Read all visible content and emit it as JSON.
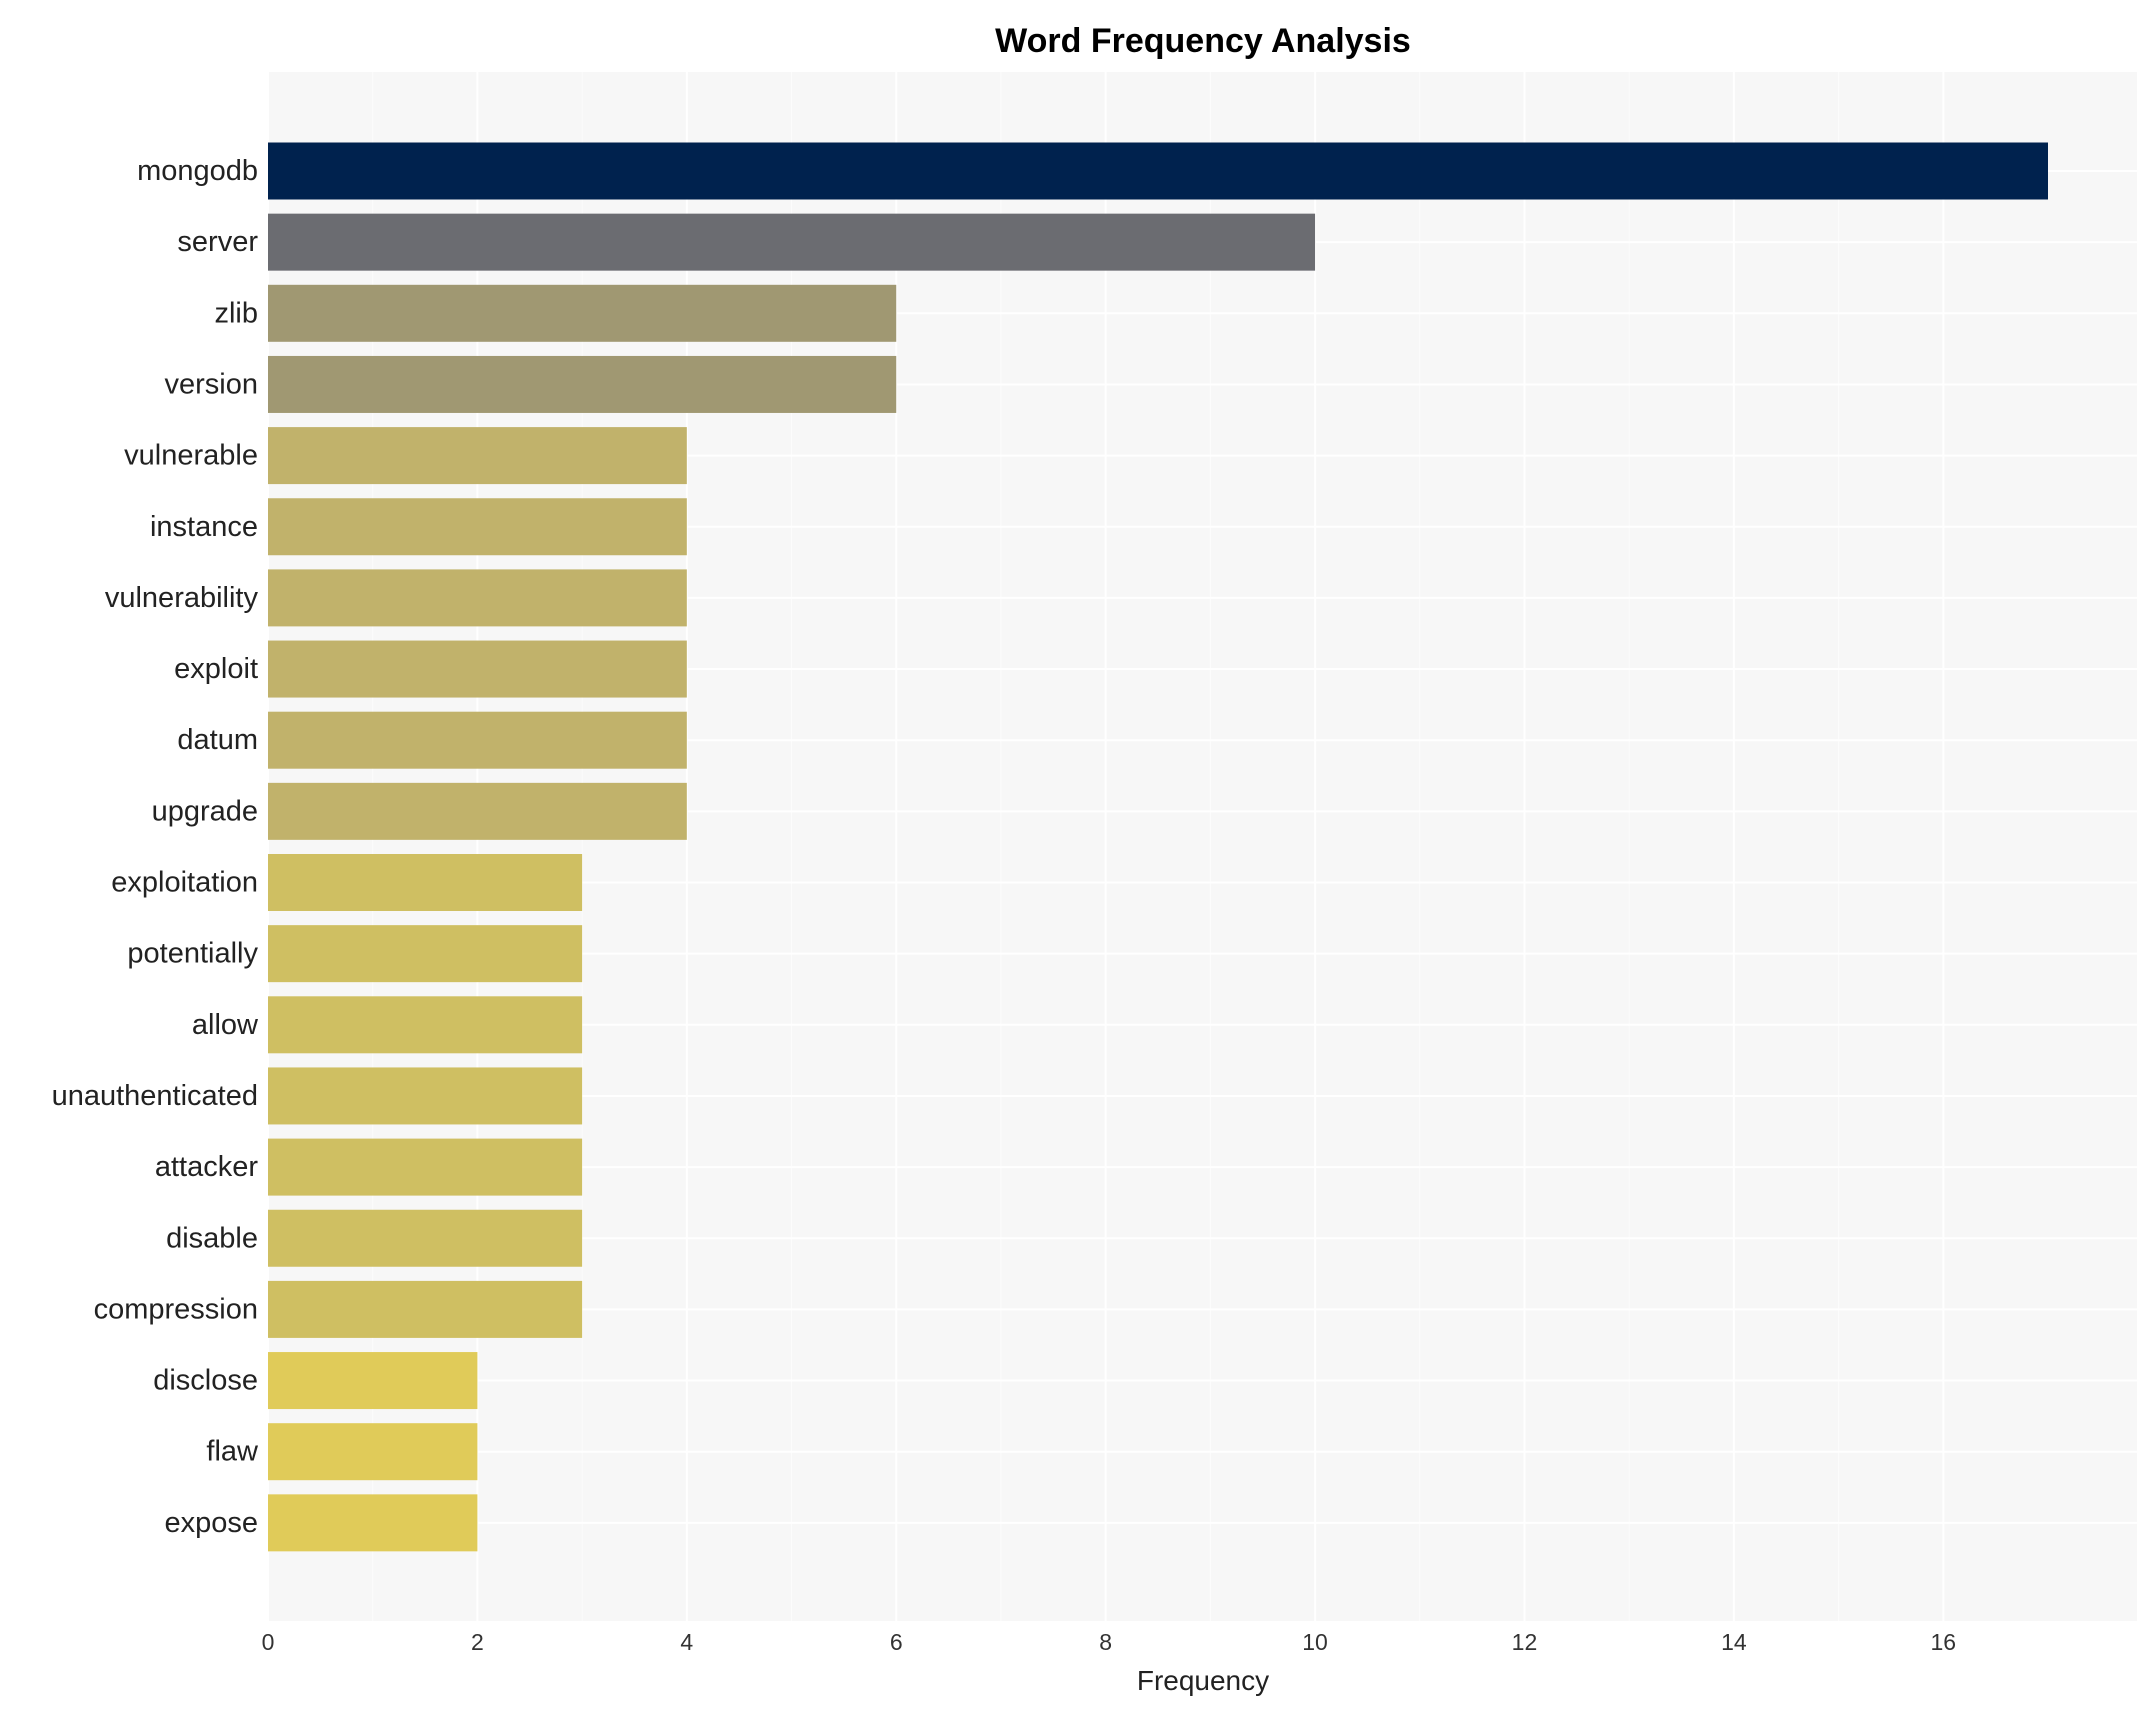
{
  "chart_data": {
    "type": "bar",
    "orientation": "horizontal",
    "title": "Word Frequency Analysis",
    "xlabel": "Frequency",
    "ylabel": "",
    "xlim": [
      0,
      17.85
    ],
    "xticks": [
      0,
      2,
      4,
      6,
      8,
      10,
      12,
      14,
      16
    ],
    "grid": true,
    "background": "#f7f7f7",
    "categories": [
      "mongodb",
      "server",
      "zlib",
      "version",
      "vulnerable",
      "instance",
      "vulnerability",
      "exploit",
      "datum",
      "upgrade",
      "exploitation",
      "potentially",
      "allow",
      "unauthenticated",
      "attacker",
      "disable",
      "compression",
      "disclose",
      "flaw",
      "expose"
    ],
    "values": [
      17,
      10,
      6,
      6,
      4,
      4,
      4,
      4,
      4,
      4,
      3,
      3,
      3,
      3,
      3,
      3,
      3,
      2,
      2,
      2
    ],
    "colors": [
      "#00224e",
      "#6b6c71",
      "#a09872",
      "#a09872",
      "#c1b26b",
      "#c1b26b",
      "#c1b26b",
      "#c1b26b",
      "#c1b26b",
      "#c1b26b",
      "#cfbf62",
      "#cfbf62",
      "#cfbf62",
      "#cfbf62",
      "#cfbf62",
      "#cfbf62",
      "#cfbf62",
      "#e0cb59",
      "#e0cb59",
      "#e0cb59"
    ]
  }
}
